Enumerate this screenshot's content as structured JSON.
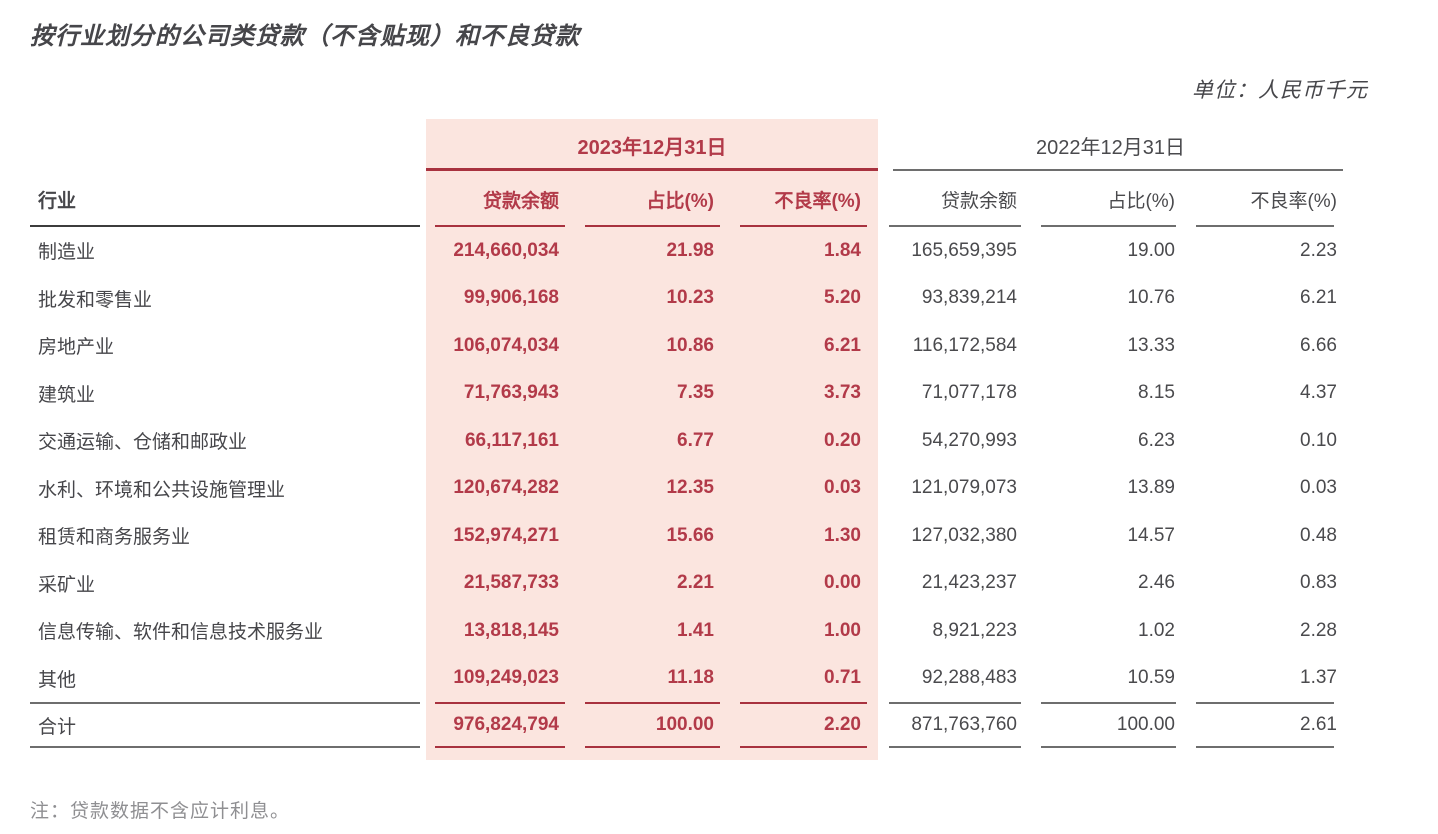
{
  "title": "按行业划分的公司类贷款（不含贴现）和不良贷款",
  "unit_label": "单位：人民币千元",
  "note": "注：贷款数据不含应计利息。",
  "table": {
    "industry_header": "行业",
    "total_label": "合计",
    "period_2023": {
      "label": "2023年12月31日",
      "columns": [
        "贷款余额",
        "占比(%)",
        "不良率(%)"
      ]
    },
    "period_2022": {
      "label": "2022年12月31日",
      "columns": [
        "贷款余额",
        "占比(%)",
        "不良率(%)"
      ]
    },
    "rows": [
      {
        "industry": "制造业",
        "y2023": [
          "214,660,034",
          "21.98",
          "1.84"
        ],
        "y2022": [
          "165,659,395",
          "19.00",
          "2.23"
        ]
      },
      {
        "industry": "批发和零售业",
        "y2023": [
          "99,906,168",
          "10.23",
          "5.20"
        ],
        "y2022": [
          "93,839,214",
          "10.76",
          "6.21"
        ]
      },
      {
        "industry": "房地产业",
        "y2023": [
          "106,074,034",
          "10.86",
          "6.21"
        ],
        "y2022": [
          "116,172,584",
          "13.33",
          "6.66"
        ]
      },
      {
        "industry": "建筑业",
        "y2023": [
          "71,763,943",
          "7.35",
          "3.73"
        ],
        "y2022": [
          "71,077,178",
          "8.15",
          "4.37"
        ]
      },
      {
        "industry": "交通运输、仓储和邮政业",
        "y2023": [
          "66,117,161",
          "6.77",
          "0.20"
        ],
        "y2022": [
          "54,270,993",
          "6.23",
          "0.10"
        ]
      },
      {
        "industry": "水利、环境和公共设施管理业",
        "y2023": [
          "120,674,282",
          "12.35",
          "0.03"
        ],
        "y2022": [
          "121,079,073",
          "13.89",
          "0.03"
        ]
      },
      {
        "industry": "租赁和商务服务业",
        "y2023": [
          "152,974,271",
          "15.66",
          "1.30"
        ],
        "y2022": [
          "127,032,380",
          "14.57",
          "0.48"
        ]
      },
      {
        "industry": "采矿业",
        "y2023": [
          "21,587,733",
          "2.21",
          "0.00"
        ],
        "y2022": [
          "21,423,237",
          "2.46",
          "0.83"
        ]
      },
      {
        "industry": "信息传输、软件和信息技术服务业",
        "y2023": [
          "13,818,145",
          "1.41",
          "1.00"
        ],
        "y2022": [
          "8,921,223",
          "1.02",
          "2.28"
        ]
      },
      {
        "industry": "其他",
        "y2023": [
          "109,249,023",
          "11.18",
          "0.71"
        ],
        "y2022": [
          "92,288,483",
          "10.59",
          "1.37"
        ]
      }
    ],
    "total": {
      "y2023": [
        "976,824,794",
        "100.00",
        "2.20"
      ],
      "y2022": [
        "871,763,760",
        "100.00",
        "2.61"
      ]
    }
  },
  "colors": {
    "accent_red": "#b23a49",
    "line_red": "#a8323f",
    "pink_bg": "#fbe5df",
    "text_dark": "#46464a",
    "text_2022": "#4a4a4d",
    "line_gray": "#6e6e6e",
    "note_gray": "#8f8f92"
  }
}
